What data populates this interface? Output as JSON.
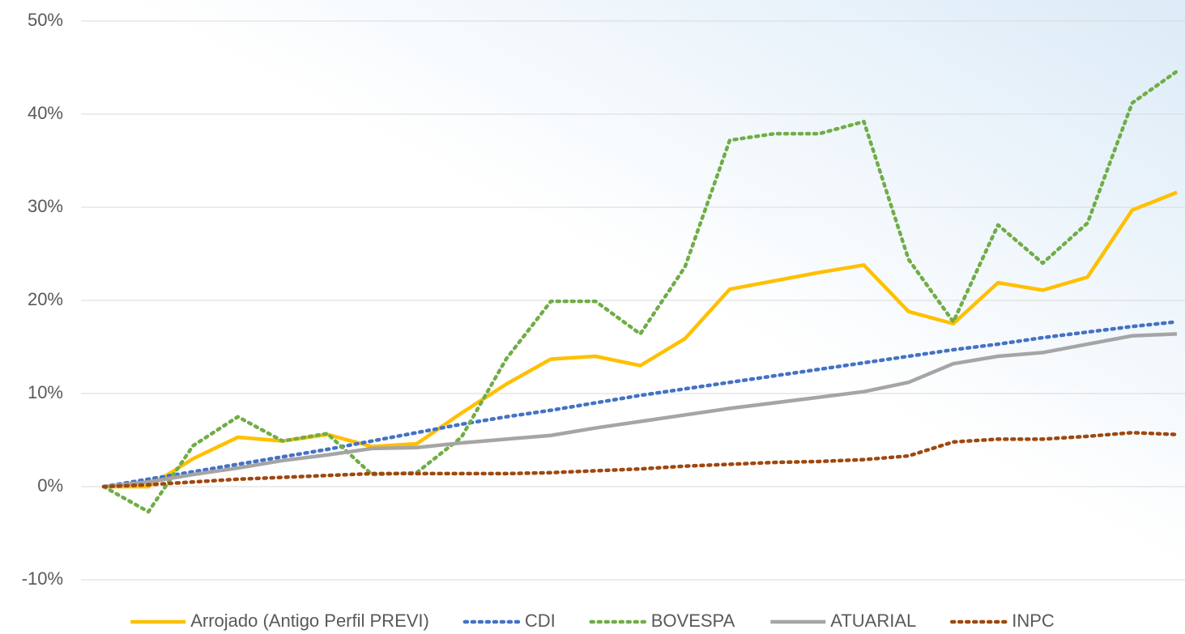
{
  "chart_data": {
    "type": "line",
    "categories": [
      null,
      null,
      null,
      null,
      null,
      null,
      null,
      null,
      null,
      null,
      null,
      null,
      null,
      null,
      null,
      null,
      null,
      null,
      null,
      null,
      null,
      null,
      null,
      null,
      null
    ],
    "series": [
      {
        "name": "Arrojado (Antigo Perfil PREVI)",
        "color": "#ffc000",
        "style": "solid",
        "values": [
          0,
          0,
          3.0,
          5.3,
          4.9,
          5.6,
          4.3,
          4.6,
          7.9,
          11.0,
          13.7,
          14.0,
          13.0,
          15.9,
          21.2,
          22.1,
          23.0,
          23.8,
          18.8,
          17.5,
          21.9,
          21.1,
          22.5,
          29.7,
          31.6
        ]
      },
      {
        "name": "CDI",
        "color": "#4472c4",
        "style": "dotted",
        "values": [
          0,
          0.8,
          1.6,
          2.4,
          3.2,
          4.0,
          4.9,
          5.8,
          6.7,
          7.5,
          8.2,
          9.0,
          9.8,
          10.5,
          11.2,
          11.9,
          12.6,
          13.3,
          14.0,
          14.7,
          15.3,
          16.0,
          16.6,
          17.2,
          17.7
        ]
      },
      {
        "name": "BOVESPA",
        "color": "#70ad47",
        "style": "dotted",
        "values": [
          0,
          -2.7,
          4.4,
          7.5,
          4.9,
          5.7,
          1.3,
          1.5,
          5.3,
          13.7,
          19.9,
          19.9,
          16.4,
          23.6,
          37.2,
          37.9,
          37.9,
          39.2,
          24.4,
          17.7,
          28.1,
          24.0,
          28.3,
          41.2,
          44.6
        ]
      },
      {
        "name": "ATUARIAL",
        "color": "#a5a5a5",
        "style": "solid",
        "values": [
          0,
          0.5,
          1.3,
          2.0,
          2.8,
          3.4,
          4.1,
          4.2,
          4.7,
          5.1,
          5.5,
          6.3,
          7.0,
          7.7,
          8.4,
          9.0,
          9.6,
          10.2,
          11.2,
          13.2,
          14.0,
          14.4,
          15.3,
          16.2,
          16.4
        ]
      },
      {
        "name": "INPC",
        "color": "#9e480e",
        "style": "dotted",
        "values": [
          0,
          0.2,
          0.5,
          0.8,
          1.0,
          1.2,
          1.4,
          1.4,
          1.4,
          1.4,
          1.5,
          1.7,
          1.9,
          2.2,
          2.4,
          2.6,
          2.7,
          2.9,
          3.3,
          4.8,
          5.1,
          5.1,
          5.4,
          5.8,
          5.6
        ]
      }
    ],
    "ylim": [
      -10,
      50
    ],
    "yticks": [
      {
        "value": -10,
        "label": "-10%"
      },
      {
        "value": 0,
        "label": "0%"
      },
      {
        "value": 10,
        "label": "10%"
      },
      {
        "value": 20,
        "label": "20%"
      },
      {
        "value": 30,
        "label": "30%"
      },
      {
        "value": 40,
        "label": "40%"
      },
      {
        "value": 50,
        "label": "50%"
      }
    ],
    "grid": true,
    "legend": "bottom"
  }
}
